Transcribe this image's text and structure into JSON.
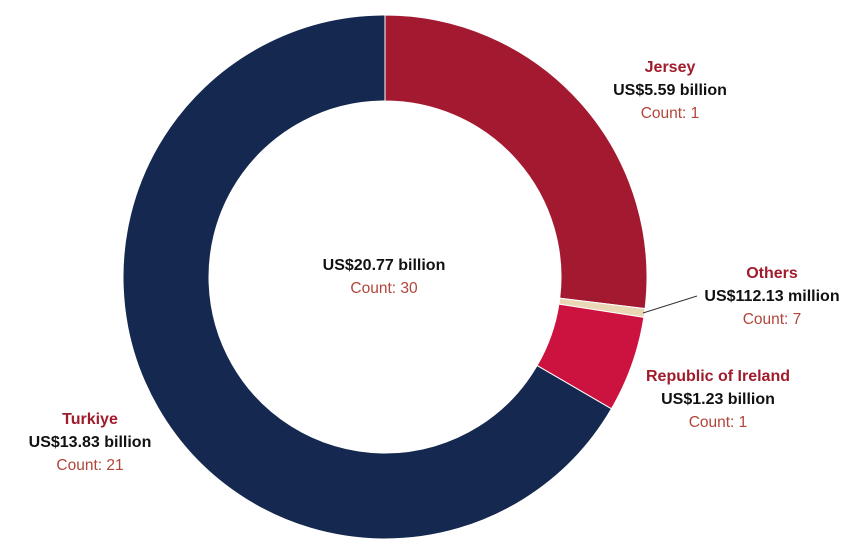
{
  "chart_data": {
    "type": "pie",
    "style": "donut",
    "center": {
      "value": "US$20.77 billion",
      "count": "Count: 30"
    },
    "slices": [
      {
        "name": "Jersey",
        "value": 5.59,
        "value_label": "US$5.59 billion",
        "count": "Count: 1",
        "color": "#a31a30"
      },
      {
        "name": "Others",
        "value": 0.11213,
        "value_label": "US$112.13 million",
        "count": "Count: 7",
        "color": "#ead7b5"
      },
      {
        "name": "Republic of Ireland",
        "value": 1.23,
        "value_label": "US$1.23 billion",
        "count": "Count: 1",
        "color": "#cc1340"
      },
      {
        "name": "Turkiye",
        "value": 13.83,
        "value_label": "US$13.83 billion",
        "count": "Count: 21",
        "color": "#15284f"
      }
    ]
  }
}
